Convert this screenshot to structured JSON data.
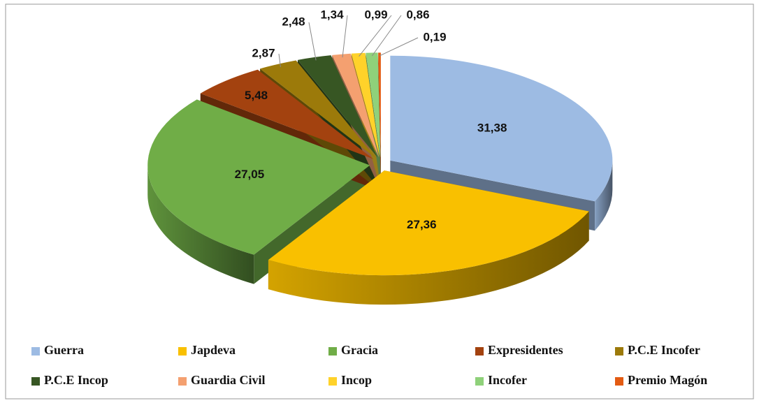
{
  "chart_data": {
    "type": "pie",
    "categories": [
      "Guerra",
      "Japdeva",
      "Gracia",
      "Expresidentes",
      "P.C.E Incofer",
      "P.C.E Incop",
      "Guardia Civil",
      "Incop",
      "Incofer",
      "Premio Magón"
    ],
    "values": [
      31.38,
      27.36,
      27.05,
      5.48,
      2.87,
      2.48,
      1.34,
      0.99,
      0.86,
      0.19
    ],
    "value_labels": [
      "31,38",
      "27,36",
      "27,05",
      "5,48",
      "2,87",
      "2,48",
      "1,34",
      "0,99",
      "0,86",
      "0,19"
    ],
    "colors": [
      "#9dbbe3",
      "#f9c000",
      "#70ad47",
      "#a3420f",
      "#9c7a0a",
      "#375623",
      "#f4a070",
      "#ffd22a",
      "#8fd17a",
      "#e35b12"
    ],
    "legend": "bottom"
  }
}
